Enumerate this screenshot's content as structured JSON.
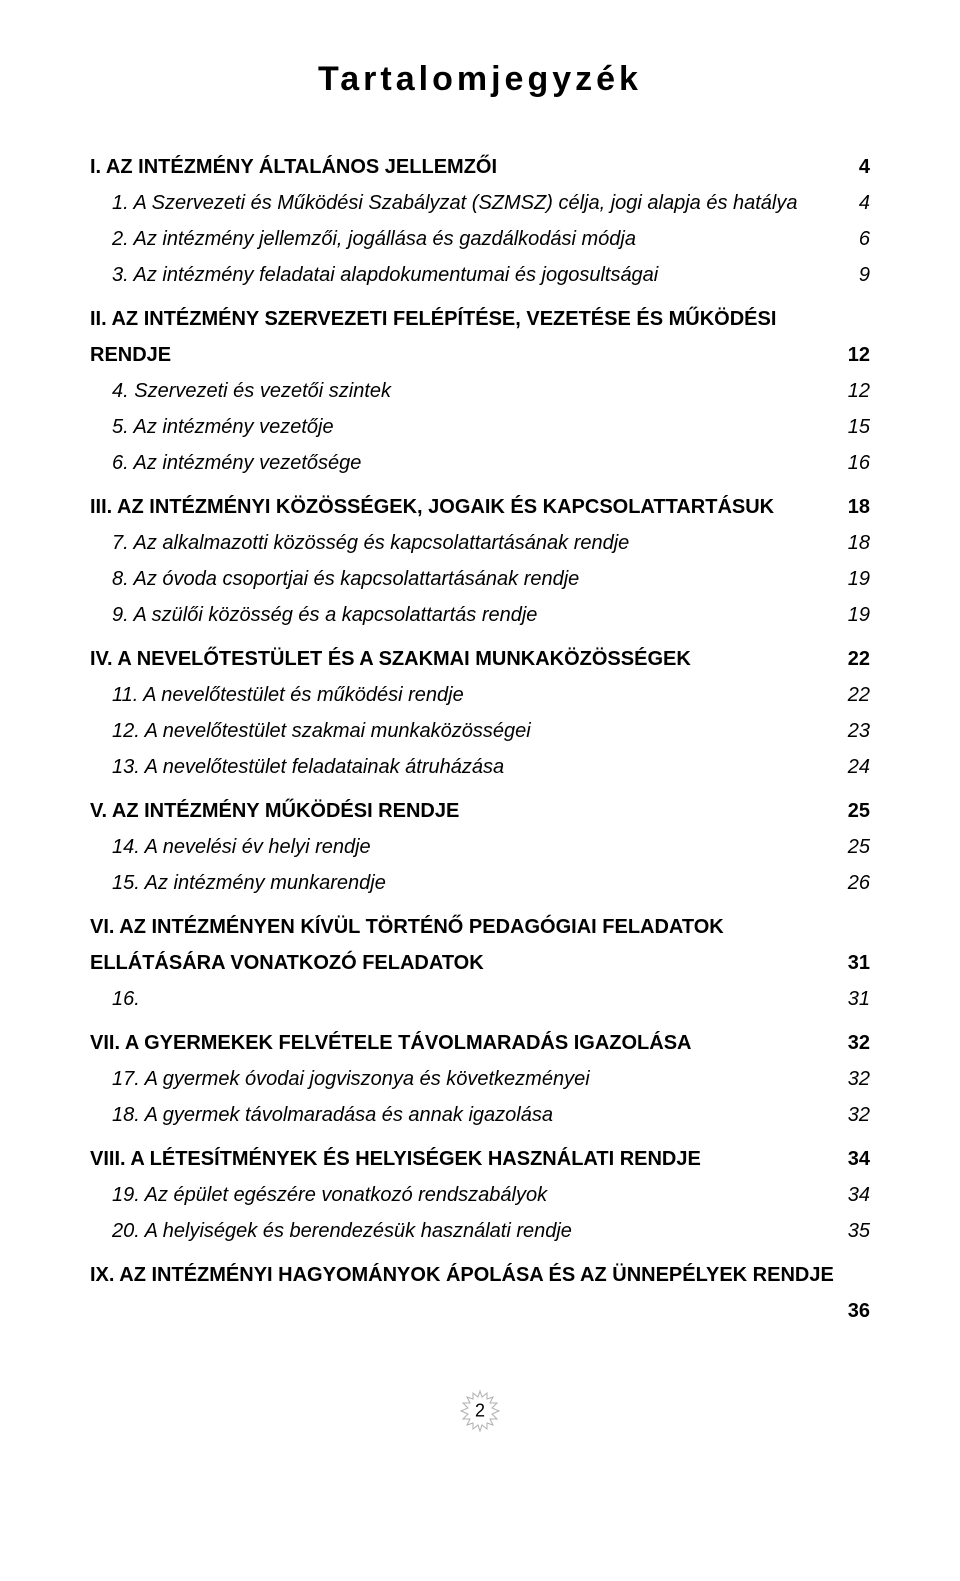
{
  "title": "Tartalomjegyzék",
  "page_number": "2",
  "colors": {
    "text": "#000000",
    "background": "#ffffff",
    "badge_stroke": "#b0b0b0",
    "badge_fill": "#ffffff"
  },
  "entries": [
    {
      "level": "section",
      "label": "I. AZ INTÉZMÉNY ÁLTALÁNOS JELLEMZŐI",
      "page": "4"
    },
    {
      "level": "sub",
      "label": "1. A Szervezeti és Működési Szabályzat (SZMSZ) célja, jogi alapja és hatálya",
      "page": "4"
    },
    {
      "level": "sub",
      "label": "2. Az intézmény jellemzői, jogállása és gazdálkodási módja",
      "page": "6"
    },
    {
      "level": "sub",
      "label": "3. Az intézmény feladatai alapdokumentumai és jogosultságai",
      "page": "9"
    },
    {
      "level": "section",
      "label_lines": [
        "II. AZ INTÉZMÉNY SZERVEZETI FELÉPÍTÉSE, VEZETÉSE ÉS MŰKÖDÉSI",
        "RENDJE"
      ],
      "page": "12"
    },
    {
      "level": "sub",
      "label": "4. Szervezeti és vezetői szintek",
      "page": "12"
    },
    {
      "level": "sub",
      "label": "5. Az intézmény vezetője",
      "page": "15"
    },
    {
      "level": "sub",
      "label": "6. Az intézmény vezetősége",
      "page": "16"
    },
    {
      "level": "section",
      "label": "III. AZ INTÉZMÉNYI KÖZÖSSÉGEK, JOGAIK ÉS KAPCSOLATTARTÁSUK",
      "page": "18"
    },
    {
      "level": "sub",
      "label": "7. Az alkalmazotti közösség és kapcsolattartásának rendje",
      "page": "18"
    },
    {
      "level": "sub",
      "label": "8. Az óvoda csoportjai és kapcsolattartásának rendje",
      "page": "19"
    },
    {
      "level": "sub",
      "label": "9. A szülői közösség és a kapcsolattartás rendje",
      "page": "19"
    },
    {
      "level": "section",
      "label": "IV. A NEVELŐTESTÜLET ÉS A SZAKMAI MUNKAKÖZÖSSÉGEK",
      "page": "22"
    },
    {
      "level": "sub",
      "label": "11. A nevelőtestület és működési rendje",
      "page": "22"
    },
    {
      "level": "sub",
      "label": "12. A nevelőtestület szakmai munkaközösségei",
      "page": "23"
    },
    {
      "level": "sub",
      "label": "13. A nevelőtestület feladatainak átruházása",
      "page": "24"
    },
    {
      "level": "section",
      "label": "V. AZ INTÉZMÉNY MŰKÖDÉSI RENDJE",
      "page": "25"
    },
    {
      "level": "sub",
      "label": "14. A nevelési év helyi rendje",
      "page": "25"
    },
    {
      "level": "sub",
      "label": "15. Az intézmény munkarendje",
      "page": "26"
    },
    {
      "level": "section",
      "label_lines": [
        "VI. AZ INTÉZMÉNYEN KÍVÜL TÖRTÉNŐ PEDAGÓGIAI FELADATOK",
        "ELLÁTÁSÁRA VONATKOZÓ FELADATOK"
      ],
      "justify_first": true,
      "page": "31"
    },
    {
      "level": "sub",
      "label": "16.",
      "page": "31"
    },
    {
      "level": "section",
      "label": "VII. A GYERMEKEK FELVÉTELE TÁVOLMARADÁS IGAZOLÁSA",
      "page": "32"
    },
    {
      "level": "sub",
      "label": "17. A gyermek óvodai jogviszonya és következményei",
      "page": "32"
    },
    {
      "level": "sub",
      "label": "18. A gyermek távolmaradása és annak igazolása",
      "page": "32"
    },
    {
      "level": "section",
      "label": "VIII. A LÉTESÍTMÉNYEK ÉS HELYISÉGEK HASZNÁLATI RENDJE",
      "page": "34"
    },
    {
      "level": "sub",
      "label": "19. Az épület egészére vonatkozó rendszabályok",
      "page": "34"
    },
    {
      "level": "sub",
      "label": "20. A helyiségek és berendezésük használati rendje",
      "page": "35"
    },
    {
      "level": "section-trail",
      "label": "IX. AZ INTÉZMÉNYI HAGYOMÁNYOK ÁPOLÁSA ÉS AZ ÜNNEPÉLYEK RENDJE",
      "page": "36"
    }
  ]
}
